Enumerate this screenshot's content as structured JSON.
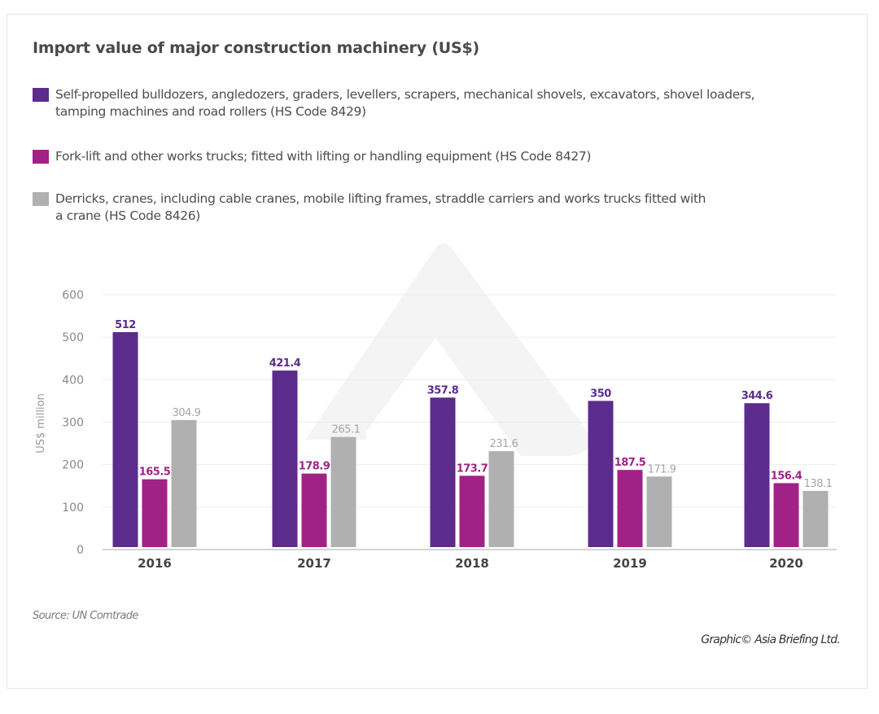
{
  "chart_data": {
    "type": "bar",
    "title": "Import value of major construction machinery (US$)",
    "xlabel": "",
    "ylabel": "US$ million",
    "ylim": [
      0,
      600
    ],
    "yticks": [
      0,
      100,
      200,
      300,
      400,
      500,
      600
    ],
    "grid": true,
    "legend_position": "top",
    "categories": [
      "2016",
      "2017",
      "2018",
      "2019",
      "2020"
    ],
    "series": [
      {
        "name": "Self-propelled bulldozers, angledozers, graders, levellers, scrapers, mechanical shovels, excavators, shovel loaders, tamping machines and road rollers (HS Code 8429)",
        "color": "#5b2c8c",
        "label_color": "#5b2c8c",
        "values": [
          512,
          421.4,
          357.8,
          350,
          344.6
        ],
        "labels": [
          "512",
          "421.4",
          "357.8",
          "350",
          "344.6"
        ]
      },
      {
        "name": "Fork-lift and other works trucks; fitted with lifting or handling equipment (HS Code 8427)",
        "color": "#a12287",
        "label_color": "#a12287",
        "values": [
          165.5,
          178.9,
          173.7,
          187.5,
          156.4
        ],
        "labels": [
          "165.5",
          "178.9",
          "173.7",
          "187.5",
          "156.4"
        ]
      },
      {
        "name": "Derricks, cranes, including cable cranes, mobile lifting frames, straddle carriers and works trucks fitted with a crane (HS Code 8426)",
        "color": "#b0b0b0",
        "label_color": "#a6a6a6",
        "values": [
          304.9,
          265.1,
          231.6,
          171.9,
          138.1
        ],
        "labels": [
          "304.9",
          "265.1",
          "231.6",
          "171.9",
          "138.1"
        ]
      }
    ],
    "source": "Source: UN Comtrade",
    "credit": "Graphic© Asia Briefing Ltd."
  },
  "legend": [
    {
      "line1": "Self-propelled bulldozers, angledozers, graders, levellers, scrapers, mechanical shovels, excavators, shovel loaders,",
      "line2": "tamping machines and road rollers (HS Code 8429)"
    },
    {
      "line1": "Fork-lift and other works trucks; fitted with lifting or handling equipment (HS Code 8427)",
      "line2": ""
    },
    {
      "line1": "Derricks, cranes, including cable cranes, mobile lifting frames, straddle carriers and works trucks fitted with",
      "line2": "a crane (HS Code 8426)"
    }
  ]
}
